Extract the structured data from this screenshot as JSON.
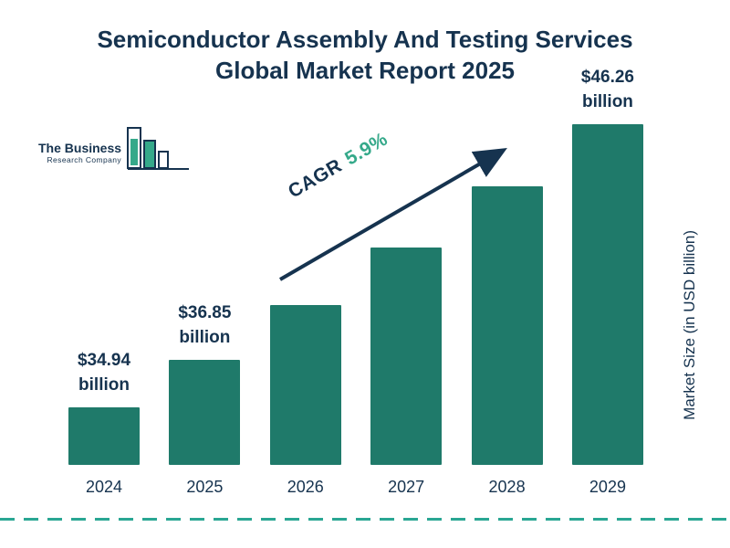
{
  "header": {
    "title_line1": "Semiconductor Assembly And Testing Services",
    "title_line2": "Global Market Report 2025"
  },
  "logo": {
    "line1": "The Business",
    "line2": "Research Company"
  },
  "chart_data": {
    "type": "bar",
    "title": "Semiconductor Assembly And Testing Services Global Market Report 2025",
    "categories": [
      "2024",
      "2025",
      "2026",
      "2027",
      "2028",
      "2029"
    ],
    "values": [
      34.94,
      36.85,
      39.02,
      41.33,
      43.77,
      46.26
    ],
    "value_labels": [
      "$34.94 billion",
      "$36.85 billion",
      null,
      null,
      null,
      "$46.26 billion"
    ],
    "xlabel": "",
    "ylabel": "Market Size (in USD billion)",
    "cagr_label": "CAGR",
    "cagr_value": "5.9%",
    "bar_color": "#1F7A6A",
    "accent_green": "#35A98A",
    "navy": "#16334F",
    "dashed_line_color": "#2AA693",
    "gridlines": false,
    "legend": "none"
  }
}
